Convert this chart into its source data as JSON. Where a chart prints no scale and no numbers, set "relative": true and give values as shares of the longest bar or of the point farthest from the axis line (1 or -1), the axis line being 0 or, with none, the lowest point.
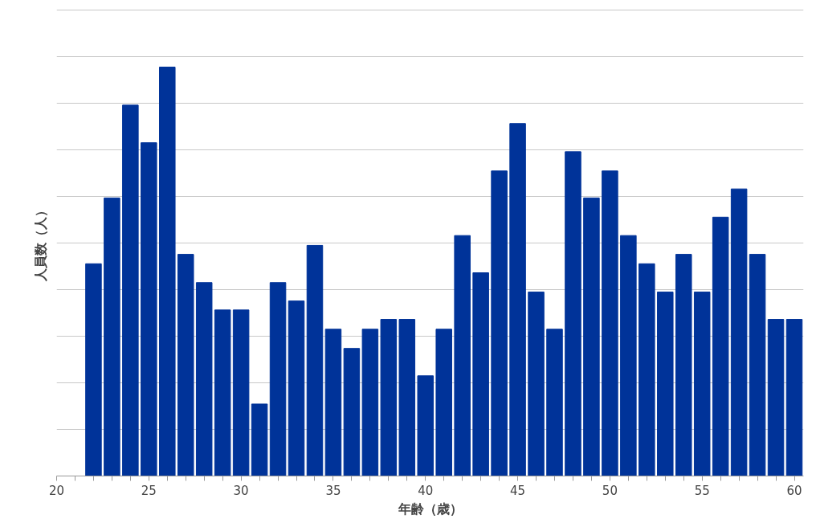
{
  "chart_data": {
    "type": "bar",
    "relative": true,
    "xlabel": "年齢（歳）",
    "ylabel": "人員数（人）",
    "x": [
      22,
      23,
      24,
      25,
      26,
      27,
      28,
      29,
      30,
      31,
      32,
      33,
      34,
      35,
      36,
      37,
      38,
      39,
      40,
      41,
      42,
      43,
      44,
      45,
      46,
      47,
      48,
      49,
      50,
      51,
      52,
      53,
      54,
      55,
      56,
      57,
      58,
      59,
      60
    ],
    "values": [
      0.519,
      0.68,
      0.907,
      0.815,
      1,
      0.542,
      0.473,
      0.406,
      0.406,
      0.176,
      0.473,
      0.428,
      0.564,
      0.359,
      0.312,
      0.359,
      0.383,
      0.383,
      0.245,
      0.359,
      0.588,
      0.497,
      0.746,
      0.862,
      0.45,
      0.359,
      0.793,
      0.68,
      0.746,
      0.588,
      0.519,
      0.45,
      0.542,
      0.45,
      0.633,
      0.702,
      0.542,
      0.383,
      0.383
    ],
    "color": "#003399",
    "xlim": [
      20,
      60.5
    ],
    "xticks": [
      20,
      {
        "value": 21,
        "label": null
      },
      {
        "value": 22,
        "label": null
      },
      {
        "value": 23,
        "label": null
      },
      {
        "value": 24,
        "label": null
      },
      25,
      {
        "value": 26,
        "label": null
      },
      {
        "value": 27,
        "label": null
      },
      {
        "value": 28,
        "label": null
      },
      {
        "value": 29,
        "label": null
      },
      30,
      {
        "value": 31,
        "label": null
      },
      {
        "value": 32,
        "label": null
      },
      {
        "value": 33,
        "label": null
      },
      {
        "value": 34,
        "label": null
      },
      35,
      {
        "value": 36,
        "label": null
      },
      {
        "value": 37,
        "label": null
      },
      {
        "value": 38,
        "label": null
      },
      {
        "value": 39,
        "label": null
      },
      40,
      {
        "value": 41,
        "label": null
      },
      {
        "value": 42,
        "label": null
      },
      {
        "value": 43,
        "label": null
      },
      {
        "value": 44,
        "label": null
      },
      45,
      {
        "value": 46,
        "label": null
      },
      {
        "value": 47,
        "label": null
      },
      {
        "value": 48,
        "label": null
      },
      {
        "value": 49,
        "label": null
      },
      50,
      {
        "value": 51,
        "label": null
      },
      {
        "value": 52,
        "label": null
      },
      {
        "value": 53,
        "label": null
      },
      {
        "value": 54,
        "label": null
      },
      55,
      {
        "value": 56,
        "label": null
      },
      {
        "value": 57,
        "label": null
      },
      {
        "value": 58,
        "label": null
      },
      {
        "value": 59,
        "label": null
      },
      60
    ],
    "grid": "y"
  }
}
